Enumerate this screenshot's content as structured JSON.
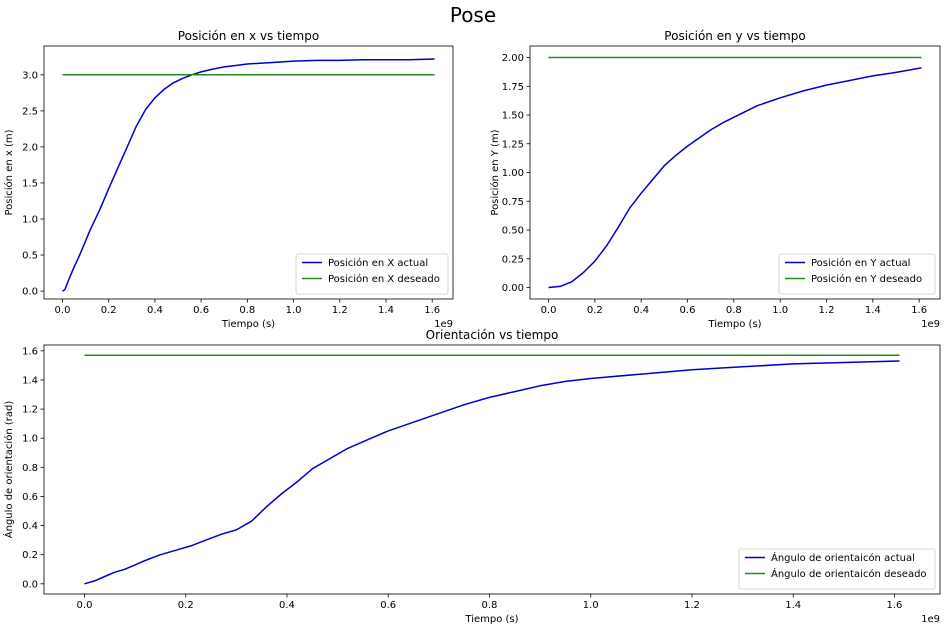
{
  "figure_title": "Pose",
  "chart_data": [
    {
      "type": "line",
      "title": "Posición en x vs tiempo",
      "xlabel": "Tiempo (s)",
      "ylabel": "Posición en x (m)",
      "x_offset_text": "1e9",
      "xlim": [
        -0.08,
        1.69
      ],
      "ylim": [
        -0.11,
        3.4
      ],
      "x_ticks": [
        0.0,
        0.2,
        0.4,
        0.6,
        0.8,
        1.0,
        1.2,
        1.4,
        1.6
      ],
      "x_tick_labels": [
        "0.0",
        "0.2",
        "0.4",
        "0.6",
        "0.8",
        "1.0",
        "1.2",
        "1.4",
        "1.6"
      ],
      "y_ticks": [
        0.0,
        0.5,
        1.0,
        1.5,
        2.0,
        2.5,
        3.0
      ],
      "y_tick_labels": [
        "0.0",
        "0.5",
        "1.0",
        "1.5",
        "2.0",
        "2.5",
        "3.0"
      ],
      "grid": false,
      "legend_position": "lower-right",
      "series": [
        {
          "name": "Posición en X actual",
          "color": "#0000cc",
          "x": [
            0.0,
            0.01,
            0.03,
            0.05,
            0.07,
            0.09,
            0.12,
            0.16,
            0.2,
            0.24,
            0.28,
            0.32,
            0.36,
            0.4,
            0.44,
            0.48,
            0.52,
            0.56,
            0.6,
            0.65,
            0.7,
            0.75,
            0.8,
            0.9,
            1.0,
            1.1,
            1.2,
            1.3,
            1.4,
            1.5,
            1.61
          ],
          "y": [
            0.0,
            0.02,
            0.18,
            0.33,
            0.47,
            0.62,
            0.85,
            1.12,
            1.42,
            1.71,
            2.0,
            2.29,
            2.52,
            2.68,
            2.8,
            2.89,
            2.95,
            3.0,
            3.04,
            3.08,
            3.11,
            3.13,
            3.15,
            3.17,
            3.19,
            3.2,
            3.2,
            3.21,
            3.21,
            3.21,
            3.22
          ]
        },
        {
          "name": "Posición en X deseado",
          "color": "#228b22",
          "x": [
            0.0,
            1.61
          ],
          "y": [
            3.0,
            3.0
          ]
        }
      ]
    },
    {
      "type": "line",
      "title": "Posición en y vs tiempo",
      "xlabel": "Tiempo (s)",
      "ylabel": "Posición en Y (m)",
      "x_offset_text": "1e9",
      "xlim": [
        -0.08,
        1.69
      ],
      "ylim": [
        -0.1,
        2.1
      ],
      "x_ticks": [
        0.0,
        0.2,
        0.4,
        0.6,
        0.8,
        1.0,
        1.2,
        1.4,
        1.6
      ],
      "x_tick_labels": [
        "0.0",
        "0.2",
        "0.4",
        "0.6",
        "0.8",
        "1.0",
        "1.2",
        "1.4",
        "1.6"
      ],
      "y_ticks": [
        0.0,
        0.25,
        0.5,
        0.75,
        1.0,
        1.25,
        1.5,
        1.75,
        2.0
      ],
      "y_tick_labels": [
        "0.00",
        "0.25",
        "0.50",
        "0.75",
        "1.00",
        "1.25",
        "1.50",
        "1.75",
        "2.00"
      ],
      "grid": false,
      "legend_position": "lower-right",
      "series": [
        {
          "name": "Posición en Y actual",
          "color": "#0000cc",
          "x": [
            0.0,
            0.05,
            0.1,
            0.15,
            0.2,
            0.25,
            0.3,
            0.35,
            0.4,
            0.45,
            0.5,
            0.55,
            0.6,
            0.65,
            0.7,
            0.75,
            0.8,
            0.9,
            1.0,
            1.1,
            1.2,
            1.3,
            1.4,
            1.5,
            1.61
          ],
          "y": [
            0.0,
            0.01,
            0.05,
            0.13,
            0.23,
            0.36,
            0.52,
            0.69,
            0.82,
            0.94,
            1.06,
            1.15,
            1.23,
            1.3,
            1.37,
            1.43,
            1.48,
            1.58,
            1.65,
            1.71,
            1.76,
            1.8,
            1.84,
            1.87,
            1.91
          ]
        },
        {
          "name": "Posición en Y deseado",
          "color": "#228b22",
          "x": [
            0.0,
            1.61
          ],
          "y": [
            2.0,
            2.0
          ]
        }
      ]
    },
    {
      "type": "line",
      "title": "Orientación vs tiempo",
      "xlabel": "Tiempo (s)",
      "ylabel": "Ángulo de orientación (rad)",
      "x_offset_text": "1e9",
      "xlim": [
        -0.08,
        1.69
      ],
      "ylim": [
        -0.07,
        1.64
      ],
      "x_ticks": [
        0.0,
        0.2,
        0.4,
        0.6,
        0.8,
        1.0,
        1.2,
        1.4,
        1.6
      ],
      "x_tick_labels": [
        "0.0",
        "0.2",
        "0.4",
        "0.6",
        "0.8",
        "1.0",
        "1.2",
        "1.4",
        "1.6"
      ],
      "y_ticks": [
        0.0,
        0.2,
        0.4,
        0.6,
        0.8,
        1.0,
        1.2,
        1.4,
        1.6
      ],
      "y_tick_labels": [
        "0.0",
        "0.2",
        "0.4",
        "0.6",
        "0.8",
        "1.0",
        "1.2",
        "1.4",
        "1.6"
      ],
      "grid": false,
      "legend_position": "lower-right",
      "series": [
        {
          "name": "Ángulo de orientaicón actual",
          "color": "#0000cc",
          "x": [
            0.0,
            0.02,
            0.04,
            0.06,
            0.08,
            0.1,
            0.12,
            0.15,
            0.18,
            0.21,
            0.24,
            0.27,
            0.3,
            0.33,
            0.36,
            0.39,
            0.42,
            0.45,
            0.48,
            0.52,
            0.56,
            0.6,
            0.65,
            0.7,
            0.75,
            0.8,
            0.85,
            0.9,
            0.95,
            1.0,
            1.1,
            1.2,
            1.3,
            1.4,
            1.5,
            1.61
          ],
          "y": [
            0.0,
            0.02,
            0.05,
            0.08,
            0.1,
            0.13,
            0.16,
            0.2,
            0.23,
            0.26,
            0.3,
            0.34,
            0.37,
            0.43,
            0.53,
            0.62,
            0.7,
            0.79,
            0.85,
            0.93,
            0.99,
            1.05,
            1.11,
            1.17,
            1.23,
            1.28,
            1.32,
            1.36,
            1.39,
            1.41,
            1.44,
            1.47,
            1.49,
            1.51,
            1.52,
            1.53
          ]
        },
        {
          "name": "Ángulo de orientaicón deseado",
          "color": "#228b22",
          "x": [
            0.0,
            1.61
          ],
          "y": [
            1.57,
            1.57
          ]
        }
      ]
    }
  ]
}
